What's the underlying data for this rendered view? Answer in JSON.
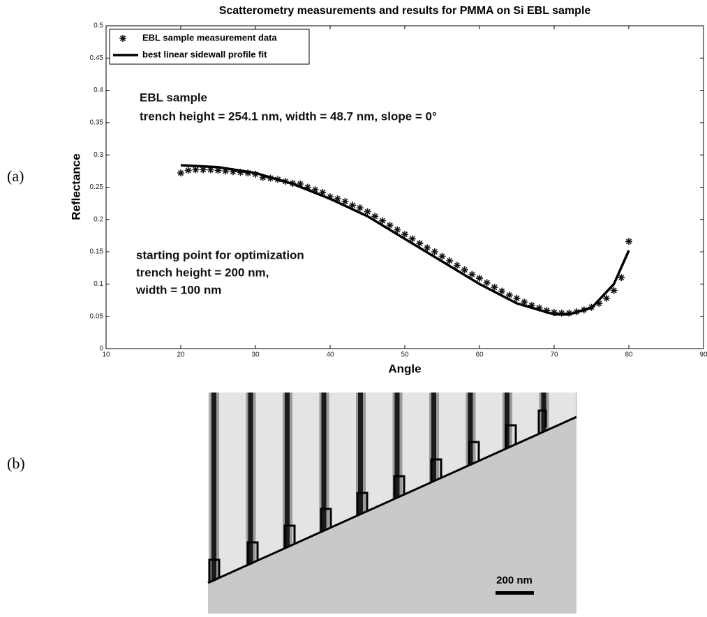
{
  "chart_data": {
    "type": "scatter-line",
    "title": "Scatterometry measurements and results for PMMA on Si EBL sample",
    "xlabel": "Angle",
    "ylabel": "Reflectance",
    "xlim": [
      10,
      90
    ],
    "xticks": [
      10,
      20,
      30,
      40,
      50,
      60,
      70,
      80,
      90
    ],
    "ylim": [
      0,
      0.5
    ],
    "yticks": [
      0,
      0.05,
      0.1,
      0.15,
      0.2,
      0.25,
      0.3,
      0.35,
      0.4,
      0.45,
      0.5
    ],
    "legend": "upper-left",
    "series": [
      {
        "name": "EBL sample measurement data",
        "color": "#111111",
        "marker": "star",
        "x": [
          20,
          21,
          22,
          23,
          24,
          25,
          26,
          27,
          28,
          29,
          30,
          31,
          32,
          33,
          34,
          35,
          36,
          37,
          38,
          39,
          40,
          41,
          42,
          43,
          44,
          45,
          46,
          47,
          48,
          49,
          50,
          51,
          52,
          53,
          54,
          55,
          56,
          57,
          58,
          59,
          60,
          61,
          62,
          63,
          64,
          65,
          66,
          67,
          68,
          69,
          70,
          71,
          72,
          73,
          74,
          75,
          76,
          77,
          78,
          79,
          80
        ],
        "values": [
          0.272,
          0.276,
          0.277,
          0.277,
          0.277,
          0.276,
          0.275,
          0.274,
          0.273,
          0.272,
          0.27,
          0.265,
          0.264,
          0.262,
          0.259,
          0.256,
          0.255,
          0.25,
          0.246,
          0.242,
          0.235,
          0.232,
          0.228,
          0.222,
          0.218,
          0.212,
          0.205,
          0.198,
          0.191,
          0.184,
          0.177,
          0.17,
          0.163,
          0.156,
          0.15,
          0.143,
          0.136,
          0.129,
          0.122,
          0.115,
          0.109,
          0.102,
          0.095,
          0.089,
          0.083,
          0.078,
          0.072,
          0.067,
          0.063,
          0.059,
          0.056,
          0.055,
          0.055,
          0.057,
          0.06,
          0.064,
          0.07,
          0.078,
          0.09,
          0.11,
          0.166
        ]
      },
      {
        "name": "best linear sidewall profile fit",
        "color": "#000000",
        "marker": "line",
        "x": [
          20,
          25,
          30,
          35,
          40,
          45,
          50,
          55,
          60,
          65,
          70,
          72,
          75,
          78,
          80
        ],
        "values": [
          0.284,
          0.281,
          0.272,
          0.255,
          0.232,
          0.205,
          0.17,
          0.135,
          0.1,
          0.07,
          0.053,
          0.053,
          0.063,
          0.1,
          0.152
        ]
      }
    ],
    "annotations": [
      "EBL sample",
      "trench height = 254.1 nm, width = 48.7 nm, slope = 0°",
      "starting point for optimization",
      "trench height = 200 nm,",
      "width = 100 nm"
    ]
  },
  "panels": [
    "(a)",
    "(b)"
  ],
  "image": {
    "scale_bar": "200 nm"
  }
}
